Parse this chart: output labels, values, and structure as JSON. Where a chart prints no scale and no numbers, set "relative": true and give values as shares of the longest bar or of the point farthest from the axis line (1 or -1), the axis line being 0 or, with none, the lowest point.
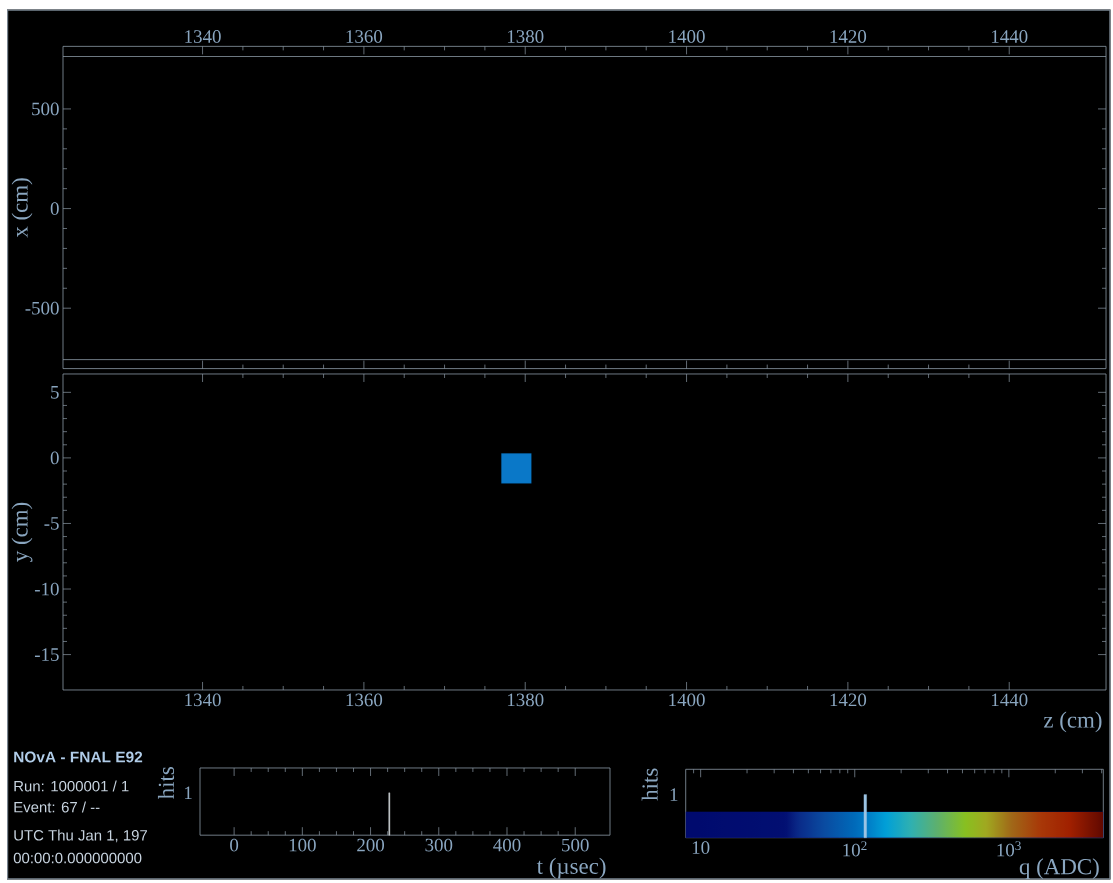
{
  "chart_data": [
    {
      "type": "scatter",
      "ylabel": "x (cm)",
      "xlim": [
        1322.7,
        1452
      ],
      "xticks": [
        1340,
        1360,
        1380,
        1400,
        1420,
        1440
      ],
      "ylim": [
        -803,
        814
      ],
      "yticks": [
        -500,
        0,
        500
      ],
      "ref_lines": [
        {
          "axis": "y",
          "value": 763,
          "color": "#8c99a6"
        },
        {
          "axis": "y",
          "value": -758,
          "color": "#8c99a6"
        }
      ]
    },
    {
      "type": "scatter",
      "xlabel": "z (cm)",
      "ylabel": "y (cm)",
      "x": [
        1378.9
      ],
      "values": [
        -0.8
      ],
      "color": "#0a78c8",
      "marker": "square",
      "xlim": [
        1322.7,
        1452
      ],
      "xticks": [
        1340,
        1360,
        1380,
        1400,
        1420,
        1440
      ],
      "ylim": [
        -17.7,
        6.4
      ],
      "yticks": [
        -15,
        -10,
        -5,
        0,
        5
      ]
    },
    {
      "type": "other",
      "title": "NOvA - FNAL E92",
      "annotations": [
        "Run:   1000001 / 1",
        "Event: 67 / --",
        "UTC Thu Jan 1, 197",
        "00:00:0.000000000"
      ]
    },
    {
      "type": "bar",
      "xlabel": "t (µsec)",
      "ylabel": "hits",
      "annotations": [
        "1"
      ],
      "x": [
        227.5
      ],
      "values": [
        1
      ],
      "relative": true,
      "color": "#c8ccd0",
      "xlim": [
        -50,
        551
      ],
      "xticks": [
        0,
        100,
        200,
        300,
        400,
        500
      ]
    },
    {
      "type": "bar",
      "xlabel": "q (ADC)",
      "ylabel": "hits",
      "annotations": [
        "1"
      ],
      "x": [
        117
      ],
      "values": [
        1
      ],
      "relative": true,
      "color": "#9cc4e4",
      "xlim": [
        8,
        4100
      ],
      "xticks": [
        10,
        {
          "value": 100,
          "label": "10$^{2}$"
        },
        {
          "value": 1000,
          "label": "10$^{3}$"
        }
      ],
      "log": "x",
      "bands": [
        {
          "axis": "y",
          "from": 0,
          "to": 0.6
        }
      ]
    }
  ]
}
